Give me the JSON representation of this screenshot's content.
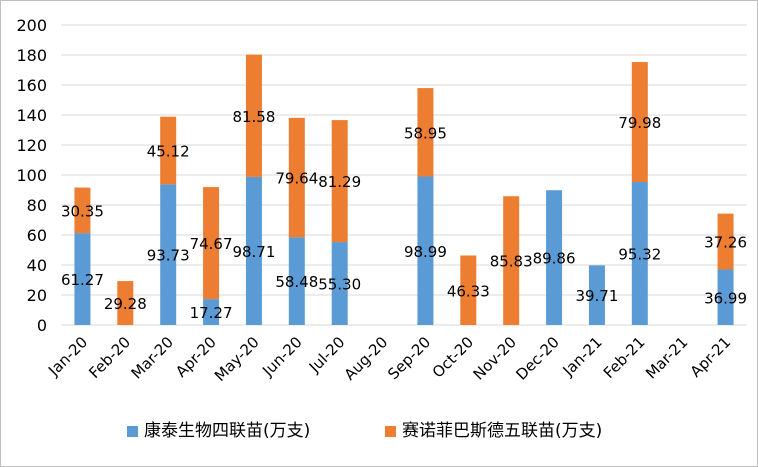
{
  "chart_data": {
    "type": "bar",
    "stacked": true,
    "title": "",
    "xlabel": "",
    "ylabel": "",
    "ylim": [
      0,
      200
    ],
    "yticks": [
      0,
      20,
      40,
      60,
      80,
      100,
      120,
      140,
      160,
      180,
      200
    ],
    "grid": true,
    "legend_position": "bottom",
    "categories": [
      "Jan-20",
      "Feb-20",
      "Mar-20",
      "Apr-20",
      "May-20",
      "Jun-20",
      "Jul-20",
      "Aug-20",
      "Sep-20",
      "Oct-20",
      "Nov-20",
      "Dec-20",
      "Jan-21",
      "Feb-21",
      "Mar-21",
      "Apr-21"
    ],
    "series": [
      {
        "name": "康泰生物四联苗(万支)",
        "color": "#5b9bd5",
        "values": [
          61.27,
          null,
          93.73,
          17.27,
          98.71,
          58.48,
          55.3,
          null,
          98.99,
          null,
          null,
          89.86,
          39.71,
          95.32,
          null,
          36.99
        ],
        "labels": [
          "61.27",
          "",
          "93.73",
          "17.27",
          "98.71",
          "58.48",
          "55.30",
          "",
          "98.99",
          "",
          "",
          "89.86",
          "39.71",
          "95.32",
          "",
          "36.99"
        ]
      },
      {
        "name": "赛诺菲巴斯德五联苗(万支)",
        "color": "#ed7d31",
        "values": [
          30.35,
          29.28,
          45.12,
          74.67,
          81.58,
          79.64,
          81.29,
          null,
          58.95,
          46.33,
          85.83,
          null,
          null,
          79.98,
          null,
          37.26
        ],
        "labels": [
          "30.35",
          "29.28",
          "45.12",
          "74.67",
          "81.58",
          "79.64",
          "81.29",
          "",
          "58.95",
          "46.33",
          "85.83",
          "",
          "",
          "79.98",
          "",
          "37.26"
        ]
      }
    ]
  }
}
